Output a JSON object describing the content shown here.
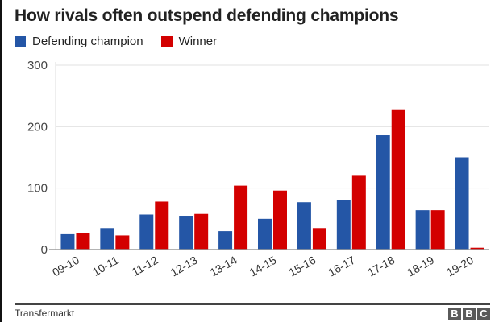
{
  "title": "How rivals often outspend defending champions",
  "legend": [
    {
      "label": "Defending champion",
      "color": "#2456a6"
    },
    {
      "label": "Winner",
      "color": "#d30000"
    }
  ],
  "source": "Transfermarkt",
  "brand": [
    "B",
    "B",
    "C"
  ],
  "chart_data": {
    "type": "bar",
    "title": "How rivals often outspend defending champions",
    "xlabel": "",
    "ylabel": "",
    "ylim": [
      0,
      300
    ],
    "yticks": [
      0,
      100,
      200,
      300
    ],
    "grid": true,
    "legend_position": "top-left",
    "categories": [
      "09-10",
      "10-11",
      "11-12",
      "12-13",
      "13-14",
      "14-15",
      "15-16",
      "16-17",
      "17-18",
      "18-19",
      "19-20"
    ],
    "series": [
      {
        "name": "Defending champion",
        "color": "#2456a6",
        "values": [
          25,
          35,
          57,
          55,
          30,
          50,
          77,
          80,
          186,
          64,
          150
        ]
      },
      {
        "name": "Winner",
        "color": "#d30000",
        "values": [
          27,
          23,
          78,
          58,
          104,
          96,
          35,
          120,
          227,
          64,
          3
        ]
      }
    ]
  }
}
